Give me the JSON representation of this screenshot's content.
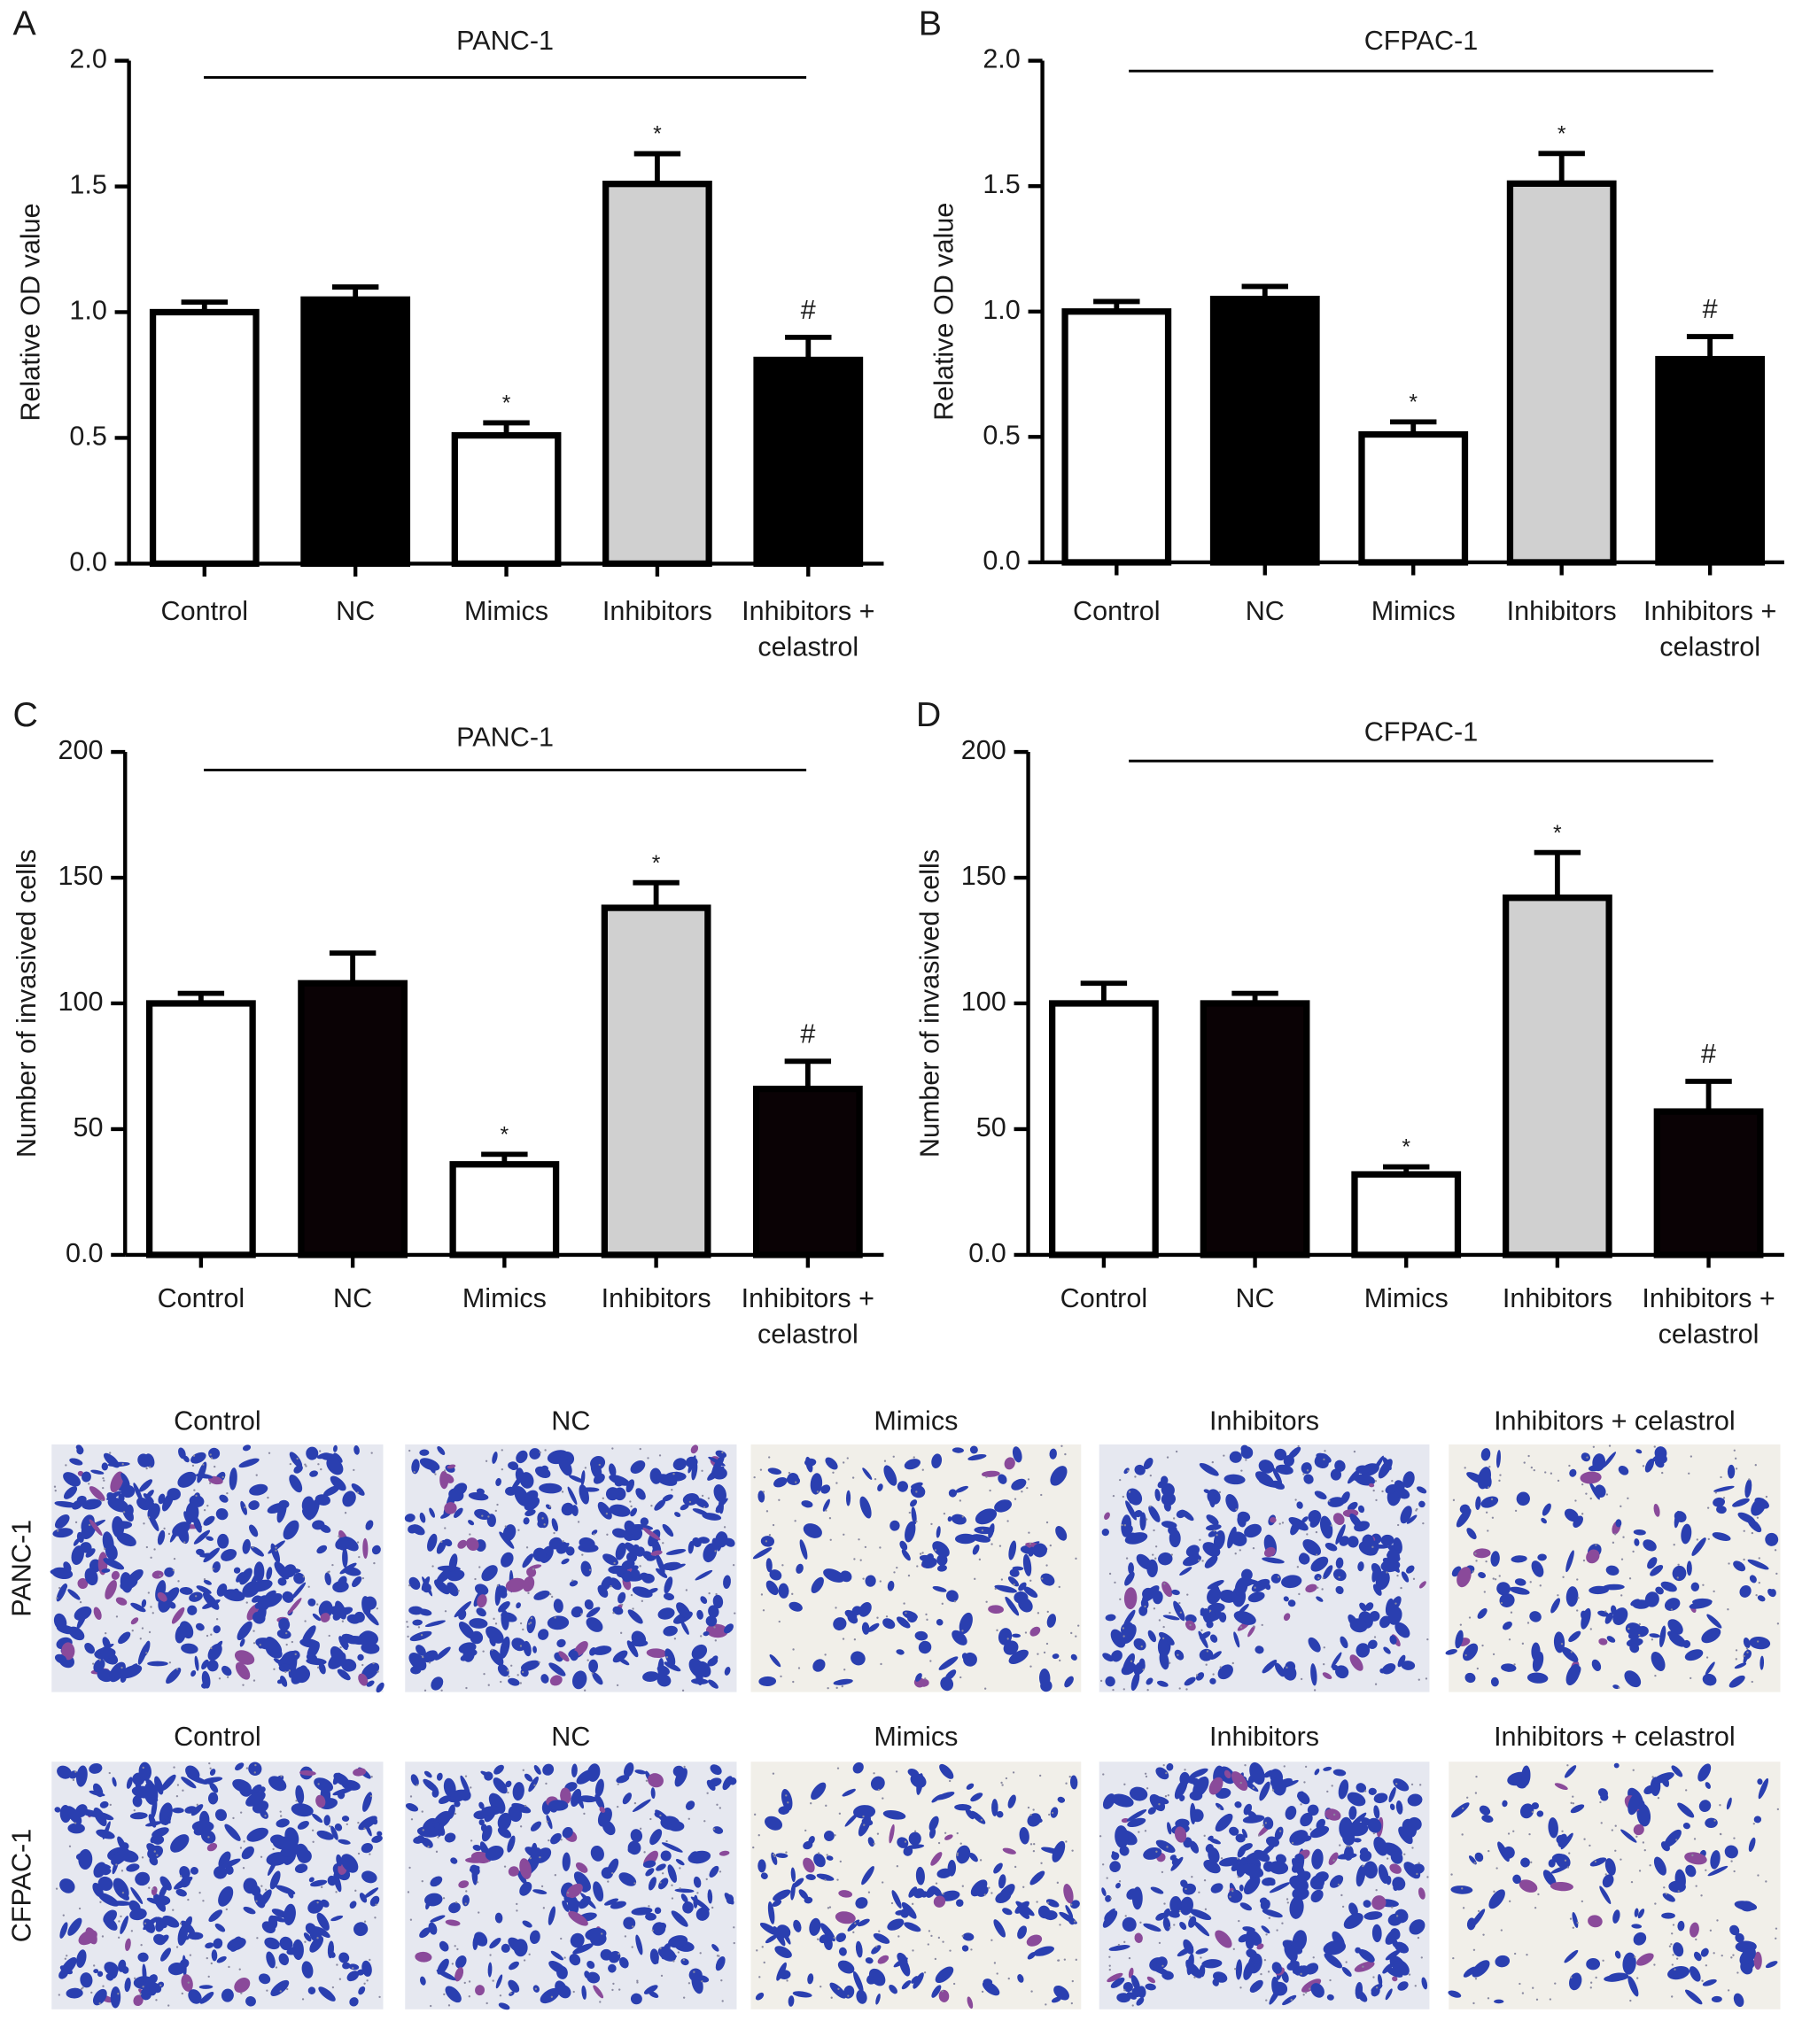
{
  "chart_data": [
    {
      "type": "bar",
      "panel": "A",
      "title": "PANC-1",
      "ylabel": "Relative OD value",
      "categories": [
        "Control",
        "NC",
        "Mimics",
        "Inhibitors",
        "Inhibitors + celastrol"
      ],
      "values": [
        1.0,
        1.05,
        0.51,
        1.51,
        0.81
      ],
      "errors": [
        0.04,
        0.05,
        0.05,
        0.12,
        0.09
      ],
      "annotations": [
        null,
        null,
        "*",
        "*",
        "#"
      ],
      "colors": [
        "#ffffff",
        "#000000",
        "#ffffff",
        "#d0d0d0",
        "#000000"
      ],
      "ylim": [
        0,
        2
      ],
      "yticks": [
        {
          "value": 0,
          "label": "0.0"
        },
        0.5,
        {
          "value": 1,
          "label": "1.0"
        },
        1.5,
        {
          "value": 2,
          "label": "2.0"
        }
      ]
    },
    {
      "type": "bar",
      "panel": "B",
      "title": "CFPAC-1",
      "ylabel": "Relative OD value",
      "categories": [
        "Control",
        "NC",
        "Mimics",
        "Inhibitors",
        "Inhibitors + celastrol"
      ],
      "values": [
        1.0,
        1.05,
        0.51,
        1.51,
        0.81
      ],
      "errors": [
        0.04,
        0.05,
        0.05,
        0.12,
        0.09
      ],
      "annotations": [
        null,
        null,
        "*",
        "*",
        "#"
      ],
      "colors": [
        "#ffffff",
        "#000000",
        "#ffffff",
        "#d0d0d0",
        "#000000"
      ],
      "ylim": [
        0,
        2
      ],
      "yticks": [
        {
          "value": 0,
          "label": "0.0"
        },
        0.5,
        {
          "value": 1,
          "label": "1.0"
        },
        1.5,
        {
          "value": 2,
          "label": "2.0"
        }
      ]
    },
    {
      "type": "bar",
      "panel": "C",
      "title": "PANC-1",
      "ylabel": "Number of invasived cells",
      "categories": [
        "Control",
        "NC",
        "Mimics",
        "Inhibitors",
        "Inhibitors + celastrol"
      ],
      "values": [
        100,
        108,
        36,
        138,
        66
      ],
      "errors": [
        4,
        12,
        4,
        10,
        11
      ],
      "annotations": [
        null,
        null,
        "*",
        "*",
        "#"
      ],
      "colors": [
        "#ffffff",
        "#0a0205",
        "#ffffff",
        "#d0d0d0",
        "#0a0205"
      ],
      "ylim": [
        0,
        200
      ],
      "yticks": [
        {
          "value": 0,
          "label": "0.0"
        },
        50,
        100,
        150,
        200
      ]
    },
    {
      "type": "bar",
      "panel": "D",
      "title": "CFPAC-1",
      "ylabel": "Number of invasived cells",
      "categories": [
        "Control",
        "NC",
        "Mimics",
        "Inhibitors",
        "Inhibitors + celastrol"
      ],
      "values": [
        100,
        100,
        32,
        142,
        57
      ],
      "errors": [
        8,
        4,
        3,
        18,
        12
      ],
      "annotations": [
        null,
        null,
        "*",
        "*",
        "#"
      ],
      "colors": [
        "#ffffff",
        "#0a0205",
        "#ffffff",
        "#d0d0d0",
        "#0a0205"
      ],
      "ylim": [
        0,
        200
      ],
      "yticks": [
        {
          "value": 0,
          "label": "0.0"
        },
        50,
        100,
        150,
        200
      ]
    }
  ],
  "micrographs": {
    "columns": [
      "Control",
      "NC",
      "Mimics",
      "Inhibitors",
      "Inhibitors + celastrol"
    ],
    "rows": [
      "PANC-1",
      "CFPAC-1"
    ]
  }
}
